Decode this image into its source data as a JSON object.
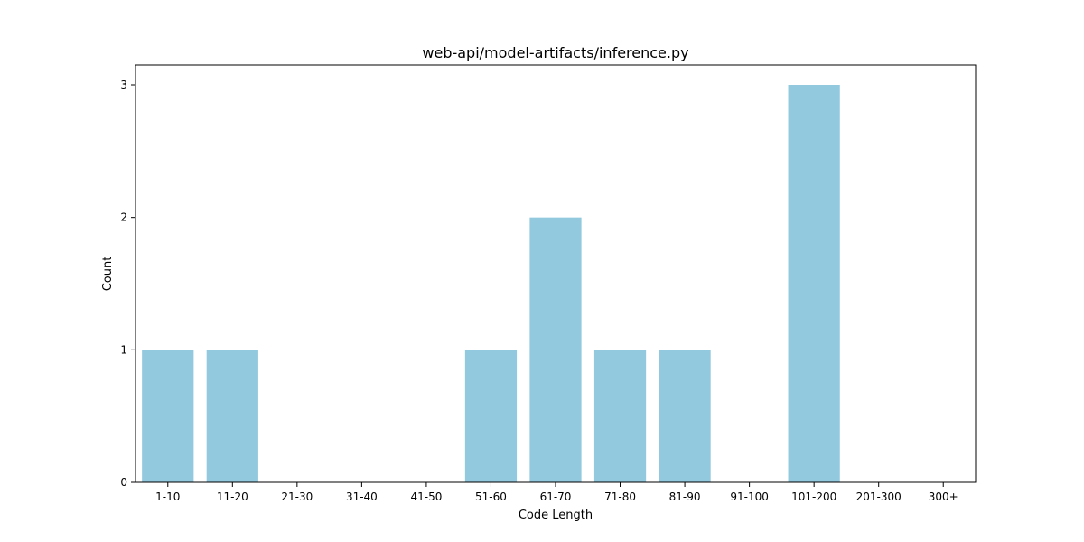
{
  "chart_data": {
    "type": "bar",
    "title": "web-api/model-artifacts/inference.py",
    "xlabel": "Code Length",
    "ylabel": "Count",
    "categories": [
      "1-10",
      "11-20",
      "21-30",
      "31-40",
      "41-50",
      "51-60",
      "61-70",
      "71-80",
      "81-90",
      "91-100",
      "101-200",
      "201-300",
      "300+"
    ],
    "values": [
      1,
      1,
      0,
      0,
      0,
      1,
      2,
      1,
      1,
      0,
      3,
      0,
      0
    ],
    "yticks": [
      "0",
      "1",
      "2",
      "3"
    ],
    "ylim": [
      0,
      3.15
    ],
    "grid": false,
    "legend": "none",
    "bar_color": "#92c9de"
  }
}
